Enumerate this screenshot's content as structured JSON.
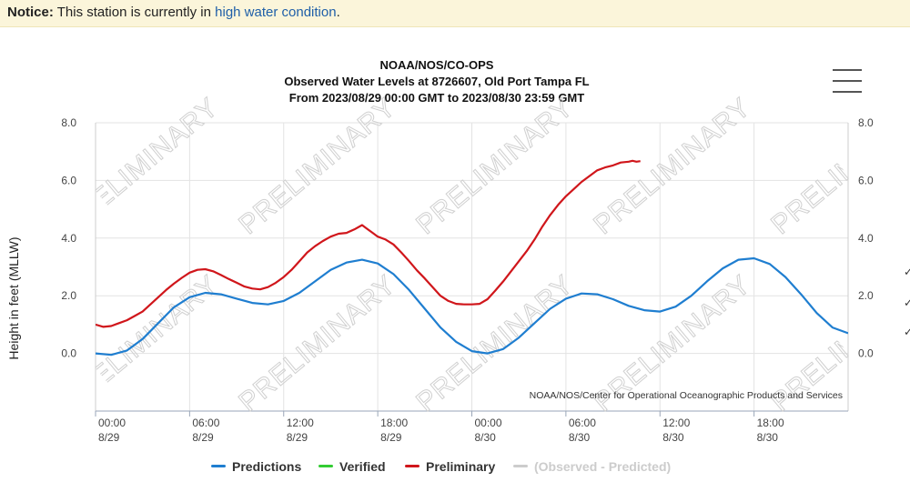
{
  "notice": {
    "prefix": "Notice:",
    "text": " This station is currently in ",
    "link": "high water condition",
    "suffix": "."
  },
  "chart_data": {
    "type": "line",
    "title": "NOAA/NOS/CO-OPS",
    "subtitle": "Observed Water Levels at 8726607, Old Port Tampa FL",
    "range_text": "From 2023/08/29 00:00 GMT to 2023/08/30 23:59 GMT",
    "ylabel": "Height in feet (MLLW)",
    "xlabel": "",
    "credit": "NOAA/NOS/Center for Operational Oceanographic Products and Services",
    "watermark": "PRELIMINARY",
    "ylim": [
      -2.0,
      8.0
    ],
    "yticks": [
      "8.0",
      "6.0",
      "4.0",
      "2.0",
      "0.0"
    ],
    "xlim_hours": [
      0,
      48
    ],
    "xticks": [
      {
        "hour": 0,
        "time": "00:00",
        "date": "8/29"
      },
      {
        "hour": 6,
        "time": "06:00",
        "date": "8/29"
      },
      {
        "hour": 12,
        "time": "12:00",
        "date": "8/29"
      },
      {
        "hour": 18,
        "time": "18:00",
        "date": "8/29"
      },
      {
        "hour": 24,
        "time": "00:00",
        "date": "8/30"
      },
      {
        "hour": 30,
        "time": "06:00",
        "date": "8/30"
      },
      {
        "hour": 36,
        "time": "12:00",
        "date": "8/30"
      },
      {
        "hour": 42,
        "time": "18:00",
        "date": "8/30"
      }
    ],
    "grid": true,
    "legend_position": "bottom",
    "series": [
      {
        "name": "Predictions",
        "color": "#1f7ed0",
        "x": [
          0,
          1,
          2,
          3,
          4,
          5,
          6,
          7,
          8,
          9,
          10,
          11,
          12,
          13,
          14,
          15,
          16,
          17,
          18,
          19,
          20,
          21,
          22,
          23,
          24,
          25,
          26,
          27,
          28,
          29,
          30,
          31,
          32,
          33,
          34,
          35,
          36,
          37,
          38,
          39,
          40,
          41,
          42,
          43,
          44,
          45,
          46,
          47,
          48
        ],
        "values": [
          0.0,
          -0.05,
          0.1,
          0.5,
          1.05,
          1.6,
          1.95,
          2.1,
          2.05,
          1.9,
          1.75,
          1.7,
          1.82,
          2.1,
          2.5,
          2.9,
          3.15,
          3.25,
          3.12,
          2.75,
          2.2,
          1.55,
          0.9,
          0.4,
          0.08,
          0.0,
          0.15,
          0.55,
          1.05,
          1.55,
          1.9,
          2.08,
          2.05,
          1.88,
          1.65,
          1.5,
          1.45,
          1.62,
          2.0,
          2.5,
          2.95,
          3.25,
          3.3,
          3.1,
          2.65,
          2.05,
          1.4,
          0.9,
          0.7
        ]
      },
      {
        "name": "Verified",
        "color": "#33cc33",
        "x": [],
        "values": []
      },
      {
        "name": "Preliminary",
        "color": "#d0161b",
        "x": [
          0,
          0.5,
          1,
          1.5,
          2,
          2.5,
          3,
          3.5,
          4,
          4.5,
          5,
          5.5,
          6,
          6.5,
          7,
          7.5,
          8,
          8.5,
          9,
          9.5,
          10,
          10.5,
          11,
          11.5,
          12,
          12.5,
          13,
          13.5,
          14,
          14.5,
          15,
          15.5,
          16,
          16.5,
          17,
          17.25,
          17.5,
          17.75,
          18,
          18.5,
          19,
          19.5,
          20,
          20.5,
          21,
          21.5,
          22,
          22.5,
          23,
          23.5,
          24,
          24.5,
          25,
          25.5,
          26,
          26.5,
          27,
          27.5,
          28,
          28.5,
          29,
          29.5,
          30,
          30.5,
          31,
          31.5,
          32,
          32.5,
          33,
          33.5,
          34,
          34.25,
          34.5,
          34.75
        ],
        "values": [
          1.0,
          0.92,
          0.95,
          1.05,
          1.15,
          1.3,
          1.45,
          1.7,
          1.95,
          2.2,
          2.42,
          2.62,
          2.8,
          2.9,
          2.92,
          2.85,
          2.72,
          2.58,
          2.45,
          2.32,
          2.25,
          2.22,
          2.3,
          2.45,
          2.65,
          2.9,
          3.2,
          3.5,
          3.72,
          3.9,
          4.05,
          4.15,
          4.18,
          4.3,
          4.45,
          4.35,
          4.25,
          4.15,
          4.05,
          3.95,
          3.78,
          3.5,
          3.2,
          2.88,
          2.6,
          2.3,
          2.0,
          1.82,
          1.72,
          1.7,
          1.7,
          1.72,
          1.88,
          2.18,
          2.5,
          2.85,
          3.2,
          3.55,
          3.95,
          4.4,
          4.8,
          5.15,
          5.45,
          5.7,
          5.95,
          6.15,
          6.35,
          6.45,
          6.52,
          6.62,
          6.65,
          6.68,
          6.65,
          6.67
        ]
      },
      {
        "name": "(Observed - Predicted)",
        "color": "#cccccc",
        "x": [],
        "values": []
      }
    ]
  }
}
